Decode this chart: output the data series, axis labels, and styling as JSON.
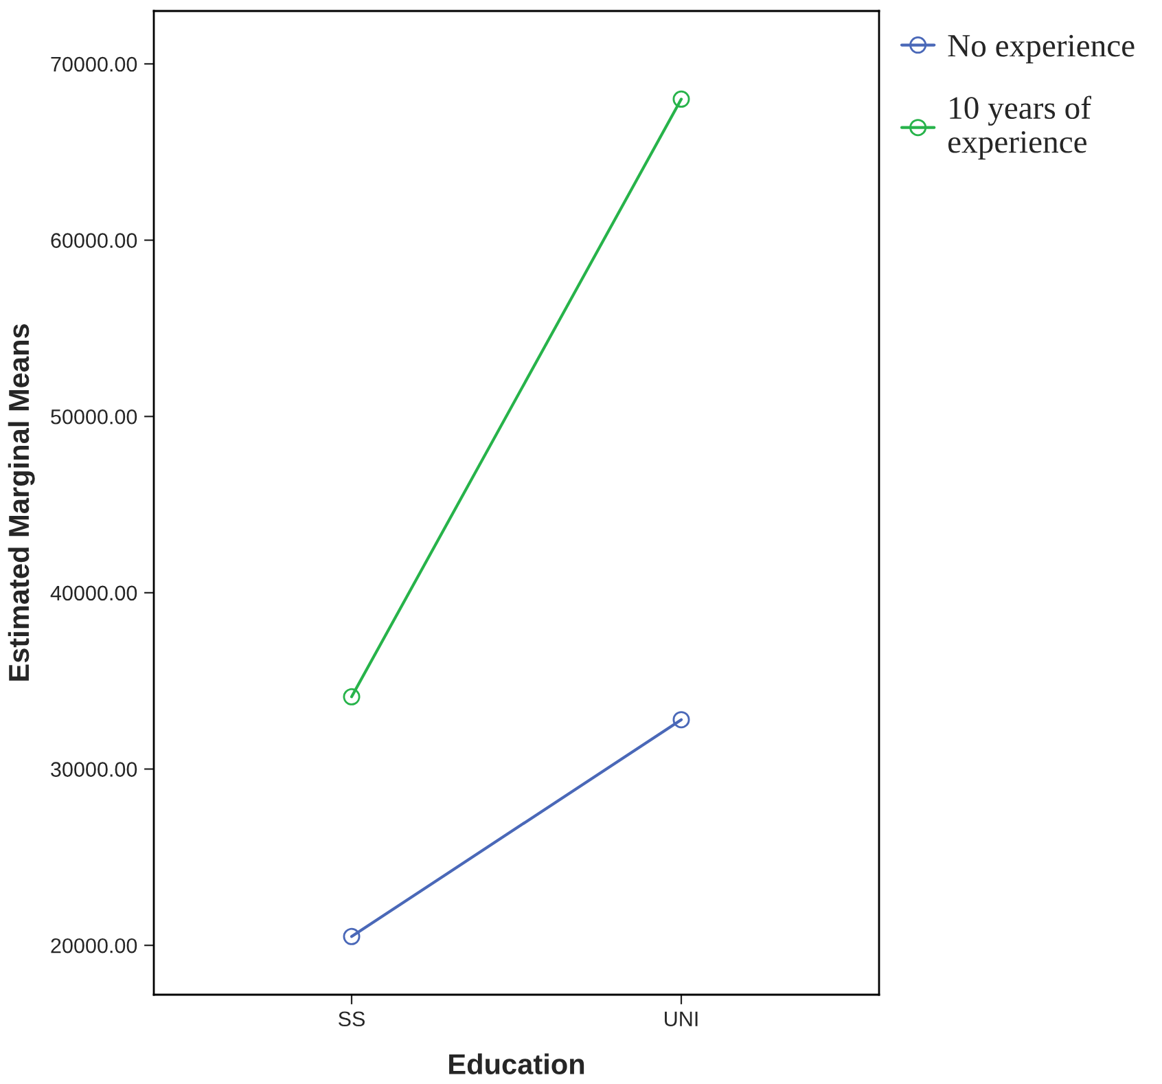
{
  "chart_data": {
    "type": "line",
    "xlabel": "Education",
    "ylabel": "Estimated Marginal Means",
    "categories": [
      "SS",
      "UNI"
    ],
    "series": [
      {
        "name": "No experience",
        "color": "#4a68b8",
        "values": [
          20500,
          32800
        ]
      },
      {
        "name": "10 years of\nexperience",
        "color": "#27b34a",
        "values": [
          34100,
          68000
        ]
      }
    ],
    "ylim": [
      17200,
      73000
    ],
    "yticks": [
      {
        "value": 20000,
        "label": "20000.00"
      },
      {
        "value": 30000,
        "label": "30000.00"
      },
      {
        "value": 40000,
        "label": "40000.00"
      },
      {
        "value": 50000,
        "label": "50000.00"
      },
      {
        "value": 60000,
        "label": "60000.00"
      },
      {
        "value": 70000,
        "label": "70000.00"
      }
    ],
    "marker": "circle",
    "line_style": "solid",
    "grid": false,
    "legend": "top right"
  }
}
